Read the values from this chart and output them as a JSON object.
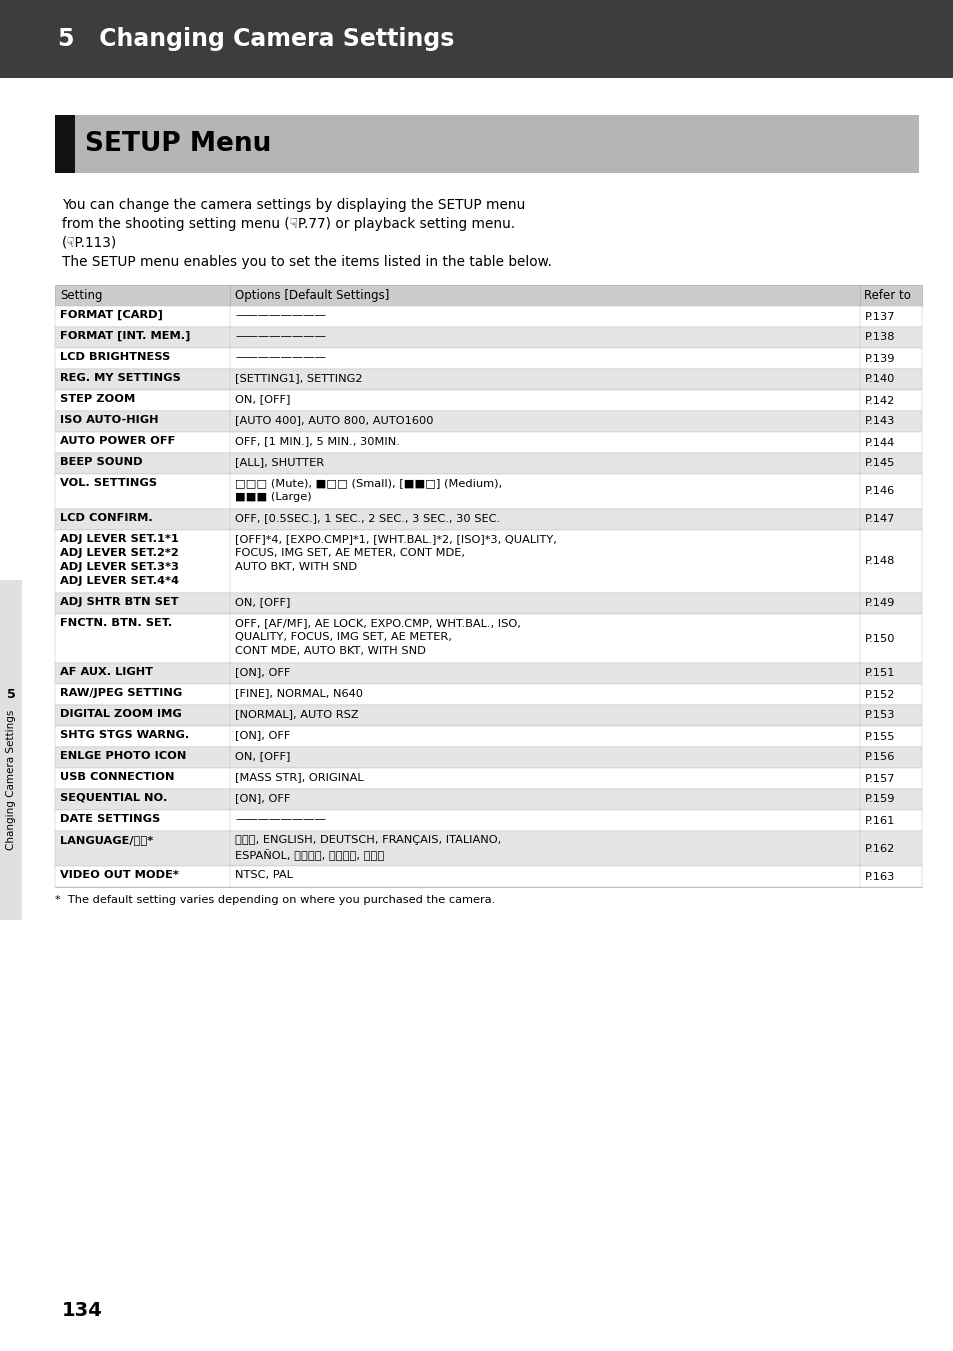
{
  "page_bg": "#ffffff",
  "header_bg": "#3d3d3d",
  "header_text": "5   Changing Camera Settings",
  "header_text_color": "#ffffff",
  "section_bg": "#b5b5b5",
  "section_black_bar_color": "#111111",
  "section_title": "SETUP Menu",
  "body_lines": [
    "You can change the camera settings by displaying the SETUP menu",
    "from the shooting setting menu (☟P.77) or playback setting menu.",
    "(☟P.113)",
    "The SETUP menu enables you to set the items listed in the table below."
  ],
  "table_header_bg": "#cccccc",
  "table_row_alt_bg": "#e5e5e5",
  "table_row_bg": "#ffffff",
  "col_headers": [
    "Setting",
    "Options [Default Settings]",
    "Refer to"
  ],
  "rows": [
    {
      "setting": "FORMAT [CARD]",
      "options": "————————",
      "refer": "P.137",
      "alt": false,
      "sh": 1,
      "oh": 1
    },
    {
      "setting": "FORMAT [INT. MEM.]",
      "options": "————————",
      "refer": "P.138",
      "alt": true,
      "sh": 1,
      "oh": 1
    },
    {
      "setting": "LCD BRIGHTNESS",
      "options": "————————",
      "refer": "P.139",
      "alt": false,
      "sh": 1,
      "oh": 1
    },
    {
      "setting": "REG. MY SETTINGS",
      "options": "[SETTING1], SETTING2",
      "refer": "P.140",
      "alt": true,
      "sh": 1,
      "oh": 1
    },
    {
      "setting": "STEP ZOOM",
      "options": "ON, [OFF]",
      "refer": "P.142",
      "alt": false,
      "sh": 1,
      "oh": 1
    },
    {
      "setting": "ISO AUTO-HIGH",
      "options": "[AUTO 400], AUTO 800, AUTO1600",
      "refer": "P.143",
      "alt": true,
      "sh": 1,
      "oh": 1
    },
    {
      "setting": "AUTO POWER OFF",
      "options": "OFF, [1 MIN.], 5 MIN., 30MIN.",
      "refer": "P.144",
      "alt": false,
      "sh": 1,
      "oh": 1
    },
    {
      "setting": "BEEP SOUND",
      "options": "[ALL], SHUTTER",
      "refer": "P.145",
      "alt": true,
      "sh": 1,
      "oh": 1
    },
    {
      "setting": "VOL. SETTINGS",
      "options": "□□□ (Mute), ■□□ (Small), [■■□] (Medium),\n■■■ (Large)",
      "refer": "P.146",
      "alt": false,
      "sh": 1,
      "oh": 2
    },
    {
      "setting": "LCD CONFIRM.",
      "options": "OFF, [0.5SEC.], 1 SEC., 2 SEC., 3 SEC., 30 SEC.",
      "refer": "P.147",
      "alt": true,
      "sh": 1,
      "oh": 1
    },
    {
      "setting": "ADJ LEVER SET.1*1\nADJ LEVER SET.2*2\nADJ LEVER SET.3*3\nADJ LEVER SET.4*4",
      "options": "[OFF]*4, [EXPO.CMP]*1, [WHT.BAL.]*2, [ISO]*3, QUALITY,\nFOCUS, IMG SET, AE METER, CONT MDE,\nAUTO BKT, WITH SND",
      "refer": "P.148",
      "alt": false,
      "sh": 4,
      "oh": 3
    },
    {
      "setting": "ADJ SHTR BTN SET",
      "options": "ON, [OFF]",
      "refer": "P.149",
      "alt": true,
      "sh": 1,
      "oh": 1
    },
    {
      "setting": "FNCTN. BTN. SET.",
      "options": "OFF, [AF/MF], AE LOCK, EXPO.CMP, WHT.BAL., ISO,\nQUALITY, FOCUS, IMG SET, AE METER,\nCONT MDE, AUTO BKT, WITH SND",
      "refer": "P.150",
      "alt": false,
      "sh": 1,
      "oh": 3
    },
    {
      "setting": "AF AUX. LIGHT",
      "options": "[ON], OFF",
      "refer": "P.151",
      "alt": true,
      "sh": 1,
      "oh": 1
    },
    {
      "setting": "RAW/JPEG SETTING",
      "options": "[FINE], NORMAL, N640",
      "refer": "P.152",
      "alt": false,
      "sh": 1,
      "oh": 1
    },
    {
      "setting": "DIGITAL ZOOM IMG",
      "options": "[NORMAL], AUTO RSZ",
      "refer": "P.153",
      "alt": true,
      "sh": 1,
      "oh": 1
    },
    {
      "setting": "SHTG STGS WARNG.",
      "options": "[ON], OFF",
      "refer": "P.155",
      "alt": false,
      "sh": 1,
      "oh": 1
    },
    {
      "setting": "ENLGE PHOTO ICON",
      "options": "ON, [OFF]",
      "refer": "P.156",
      "alt": true,
      "sh": 1,
      "oh": 1
    },
    {
      "setting": "USB CONNECTION",
      "options": "[MASS STR], ORIGINAL",
      "refer": "P.157",
      "alt": false,
      "sh": 1,
      "oh": 1
    },
    {
      "setting": "SEQUENTIAL NO.",
      "options": "[ON], OFF",
      "refer": "P.159",
      "alt": true,
      "sh": 1,
      "oh": 1
    },
    {
      "setting": "DATE SETTINGS",
      "options": "————————",
      "refer": "P.161",
      "alt": false,
      "sh": 1,
      "oh": 1
    },
    {
      "setting": "LANGUAGE/言語*",
      "options": "日本語, ENGLISH, DEUTSCH, FRANÇAIS, ITALIANO,\nESPAÑOL, 简体中文, 繁体中文, 한국어",
      "refer": "P.162",
      "alt": true,
      "sh": 1,
      "oh": 2
    },
    {
      "setting": "VIDEO OUT MODE*",
      "options": "NTSC, PAL",
      "refer": "P.163",
      "alt": false,
      "sh": 1,
      "oh": 1
    }
  ],
  "footnote": "*  The default setting varies depending on where you purchased the camera.",
  "page_number": "134",
  "sidebar_num": "5",
  "sidebar_label": "Changing Camera Settings"
}
